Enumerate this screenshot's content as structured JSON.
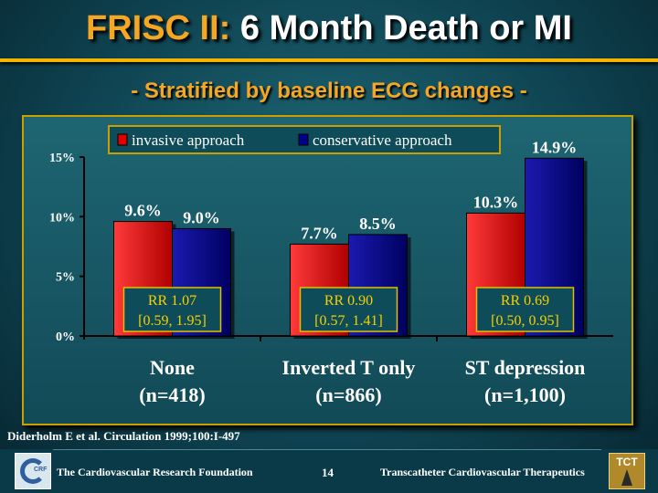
{
  "slide": {
    "title_accent": "FRISC II:",
    "title_rest": "6 Month Death or MI",
    "subtitle": "- Stratified by baseline ECG changes -",
    "citation": "Diderholm E et al. Circulation 1999;100:I-497",
    "footer_left": "The Cardiovascular Research Foundation",
    "page_number": "14",
    "footer_right": "Transcatheter Cardiovascular Therapeutics",
    "logo_left_text": "CRF",
    "logo_right_text": "TCT"
  },
  "colors": {
    "invasive": "#e00000",
    "conservative": "#00008c",
    "rr_box_border": "#e0c000",
    "rr_text": "#f5d000",
    "accent": "#f5a623"
  },
  "chart_data": {
    "type": "bar",
    "categories": [
      "None",
      "Inverted T only",
      "ST depression"
    ],
    "category_subtitles": [
      "(n=418)",
      "(n=866)",
      "(n=1,100)"
    ],
    "series": [
      {
        "name": "invasive approach",
        "values": [
          9.6,
          7.7,
          10.3
        ]
      },
      {
        "name": "conservative approach",
        "values": [
          9.0,
          8.5,
          14.9
        ]
      }
    ],
    "value_labels": [
      [
        "9.6%",
        "7.7%",
        "10.3%"
      ],
      [
        "9.0%",
        "8.5%",
        "14.9%"
      ]
    ],
    "yticks": [
      0,
      5,
      10,
      15
    ],
    "ytick_labels": [
      "0%",
      "5%",
      "10%",
      "15%"
    ],
    "ylim": [
      0,
      15
    ],
    "legend_position": "top",
    "annotations": [
      {
        "rr": "RR 1.07",
        "ci": "[0.59, 1.95]"
      },
      {
        "rr": "RR 0.90",
        "ci": "[0.57, 1.41]"
      },
      {
        "rr": "RR 0.69",
        "ci": "[0.50, 0.95]"
      }
    ]
  }
}
